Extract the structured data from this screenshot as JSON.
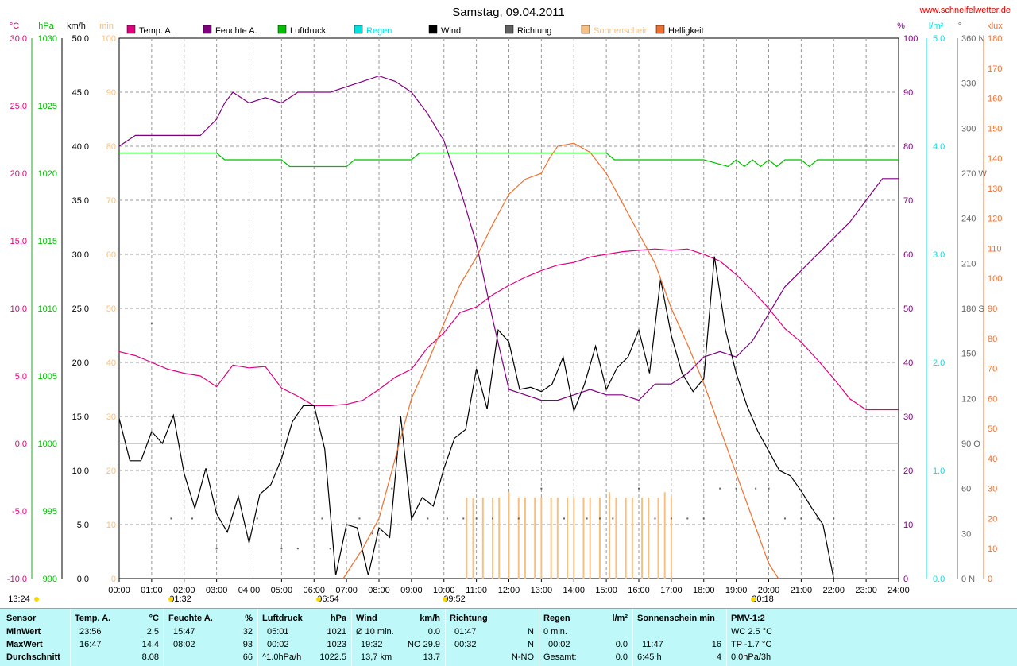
{
  "page_title": "Samstag, 09.04.2011",
  "website": "www.schneifelwetter.de",
  "colors": {
    "temp": "#e0007f",
    "humidity": "#800080",
    "pressure": "#00c000",
    "rain": "#00e0e0",
    "wind": "#000000",
    "direction": "#606060",
    "sunshine": "#f8c080",
    "brightness": "#f07030"
  },
  "chart_data": {
    "type": "line",
    "x": [
      "00:00",
      "01:00",
      "02:00",
      "03:00",
      "04:00",
      "05:00",
      "06:00",
      "07:00",
      "08:00",
      "09:00",
      "10:00",
      "11:00",
      "12:00",
      "13:00",
      "14:00",
      "15:00",
      "16:00",
      "17:00",
      "18:00",
      "19:00",
      "20:00",
      "21:00",
      "22:00",
      "23:00",
      "24:00"
    ],
    "xlim": [
      0,
      24
    ],
    "grid": true,
    "legend_position": "top",
    "legend": [
      "Temp. A.",
      "Feuchte A.",
      "Luftdruck",
      "Regen",
      "Wind",
      "Richtung",
      "Sonnenschein",
      "Helligkeit"
    ],
    "axes": {
      "temp": {
        "unit": "°C",
        "ticks": [
          "30.0",
          "25.0",
          "20.0",
          "15.0",
          "10.0",
          "5.0",
          "0.0",
          "-5.0",
          "-10.0"
        ],
        "ylim": [
          -10,
          30
        ]
      },
      "pressure": {
        "unit": "hPa",
        "ticks": [
          "1030",
          "1025",
          "1020",
          "1015",
          "1010",
          "1005",
          "1000",
          "995",
          "990"
        ],
        "ylim": [
          990,
          1030
        ]
      },
      "wind": {
        "unit": "km/h",
        "ticks": [
          "50.0",
          "45.0",
          "40.0",
          "35.0",
          "30.0",
          "25.0",
          "20.0",
          "15.0",
          "10.0",
          "5.0",
          "0.0"
        ],
        "ylim": [
          0,
          50
        ]
      },
      "sunshine": {
        "unit": "min",
        "ticks": [
          "100",
          "90",
          "80",
          "70",
          "60",
          "50",
          "40",
          "30",
          "20",
          "10",
          "0"
        ],
        "ylim": [
          0,
          100
        ]
      },
      "humidity": {
        "unit": "%",
        "ticks": [
          "100",
          "90",
          "80",
          "70",
          "60",
          "50",
          "40",
          "30",
          "20",
          "10",
          "0"
        ],
        "ylim": [
          0,
          100
        ]
      },
      "rain": {
        "unit": "l/m²",
        "ticks": [
          "5.0",
          "4.0",
          "3.0",
          "2.0",
          "1.0",
          "0.0"
        ],
        "ylim": [
          0,
          5
        ]
      },
      "direction": {
        "unit": "°",
        "ticks": [
          "360 N",
          "330",
          "300",
          "270 W",
          "240",
          "210",
          "180 S",
          "150",
          "120",
          "90 O",
          "60",
          "30",
          "0 N"
        ],
        "ylim": [
          0,
          360
        ]
      },
      "brightness": {
        "unit": "klux",
        "ticks": [
          "180",
          "170",
          "160",
          "150",
          "140",
          "130",
          "120",
          "110",
          "100",
          "90",
          "80",
          "70",
          "60",
          "50",
          "40",
          "30",
          "20",
          "10",
          "0"
        ],
        "ylim": [
          0,
          180
        ]
      }
    },
    "series": [
      {
        "name": "Temp. A.",
        "axis": "temp",
        "x": [
          0,
          0.5,
          1,
          1.5,
          2,
          2.5,
          3,
          3.5,
          4,
          4.5,
          5,
          5.5,
          6,
          6.5,
          7,
          7.5,
          8,
          8.5,
          9,
          9.5,
          10,
          10.5,
          11,
          11.5,
          12,
          12.5,
          13,
          13.5,
          14,
          14.5,
          15,
          15.5,
          16,
          16.5,
          17,
          17.5,
          18,
          18.5,
          19,
          19.5,
          20,
          20.5,
          21,
          21.5,
          22,
          22.5,
          23,
          23.5,
          24
        ],
        "values": [
          6.8,
          6.5,
          6.0,
          5.5,
          5.2,
          5.0,
          4.2,
          5.8,
          5.6,
          5.7,
          4.1,
          3.5,
          2.8,
          2.8,
          2.9,
          3.2,
          4.0,
          4.9,
          5.5,
          7.1,
          8.2,
          9.7,
          10.1,
          11.0,
          11.7,
          12.3,
          12.8,
          13.2,
          13.4,
          13.8,
          14.0,
          14.2,
          14.3,
          14.4,
          14.3,
          14.4,
          14.0,
          13.5,
          12.5,
          11.3,
          10.0,
          8.5,
          7.5,
          6.2,
          4.8,
          3.3,
          2.5,
          2.5,
          2.5
        ]
      },
      {
        "name": "Feuchte A.",
        "axis": "humidity",
        "x": [
          0,
          0.5,
          1,
          1.5,
          2,
          2.5,
          3,
          3.25,
          3.5,
          4,
          4.5,
          5,
          5.5,
          6,
          6.5,
          7,
          7.5,
          8,
          8.5,
          9,
          9.5,
          10,
          10.5,
          11,
          11.5,
          12,
          12.5,
          13,
          13.5,
          14,
          14.5,
          15,
          15.5,
          16,
          16.5,
          17,
          17.5,
          18,
          18.5,
          19,
          19.5,
          20,
          20.5,
          21,
          21.5,
          22,
          22.5,
          23,
          23.5,
          24
        ],
        "values": [
          80,
          82,
          82,
          82,
          82,
          82,
          85,
          88,
          90,
          88,
          89,
          88,
          90,
          90,
          90,
          91,
          92,
          93,
          92,
          90,
          86,
          81,
          72,
          62,
          48,
          35,
          34,
          33,
          33,
          34,
          35,
          34,
          34,
          33,
          36,
          36,
          38,
          41,
          42,
          41,
          44,
          49,
          54,
          57,
          60,
          63,
          66,
          70,
          74,
          74
        ]
      },
      {
        "name": "Luftdruck",
        "axis": "pressure",
        "x": [
          0,
          2,
          2.25,
          3,
          3.25,
          4,
          4.5,
          5,
          5.25,
          6,
          6.5,
          7,
          7.25,
          8,
          8.5,
          9,
          9.25,
          10,
          12,
          14,
          15,
          15.25,
          16,
          17,
          18,
          18.75,
          19,
          19.25,
          19.5,
          19.75,
          20,
          20.25,
          20.5,
          20.75,
          21,
          21.25,
          21.5,
          21.75,
          22,
          24
        ],
        "values": [
          1021.5,
          1021.5,
          1021.5,
          1021.5,
          1021,
          1021,
          1021,
          1021,
          1020.5,
          1020.5,
          1020.5,
          1020.5,
          1021,
          1021,
          1021,
          1021,
          1021.5,
          1021.5,
          1021.5,
          1021.5,
          1021.5,
          1021,
          1021,
          1021,
          1021,
          1020.5,
          1021,
          1020.5,
          1021,
          1020.5,
          1021,
          1020.5,
          1021,
          1021,
          1021,
          1020.5,
          1021,
          1021,
          1021,
          1021
        ]
      },
      {
        "name": "Wind",
        "axis": "wind",
        "x": [
          0,
          0.33,
          0.67,
          1,
          1.33,
          1.67,
          2,
          2.33,
          2.67,
          3,
          3.33,
          3.67,
          4,
          4.33,
          4.67,
          5,
          5.33,
          5.67,
          6,
          6.33,
          6.67,
          7,
          7.33,
          7.67,
          8,
          8.33,
          8.67,
          9,
          9.33,
          9.67,
          10,
          10.33,
          10.67,
          11,
          11.33,
          11.67,
          12,
          12.33,
          12.67,
          13,
          13.33,
          13.67,
          14,
          14.33,
          14.67,
          15,
          15.33,
          15.67,
          16,
          16.33,
          16.67,
          17,
          17.33,
          17.67,
          18,
          18.33,
          18.67,
          19,
          19.33,
          19.67,
          20,
          20.33,
          20.67,
          21,
          21.33,
          21.67,
          22
        ],
        "values": [
          14.8,
          10.9,
          10.9,
          13.6,
          12.5,
          15.1,
          9.7,
          6.5,
          10.2,
          6.0,
          4.3,
          7.6,
          3.3,
          7.8,
          8.7,
          11.1,
          14.5,
          16.0,
          16.0,
          12.0,
          0.3,
          5.0,
          4.7,
          0.3,
          4.7,
          3.8,
          15.0,
          5.5,
          7.5,
          6.7,
          10.2,
          13.0,
          13.8,
          19.4,
          15.7,
          23.0,
          21.9,
          17.5,
          17.7,
          17.3,
          18.0,
          20.5,
          15.5,
          18.0,
          21.5,
          17.5,
          19.5,
          20.5,
          23.0,
          19.0,
          27.7,
          22.5,
          19.0,
          17.3,
          18.5,
          29.8,
          23.0,
          19.0,
          16.0,
          13.6,
          11.8,
          10.0,
          9.5,
          8.1,
          6.5,
          5.0,
          0.0
        ]
      },
      {
        "name": "Helligkeit",
        "axis": "brightness",
        "x": [
          6.9,
          7.5,
          8,
          8.5,
          9,
          9.5,
          10,
          10.5,
          11,
          11.5,
          12,
          12.5,
          13,
          13.25,
          13.5,
          14,
          14.5,
          15,
          15.5,
          16,
          16.5,
          17,
          17.5,
          18,
          18.5,
          19,
          19.5,
          20,
          20.3
        ],
        "values": [
          0,
          10,
          20,
          40,
          60,
          72,
          85,
          98,
          107,
          118,
          128,
          133,
          135,
          140,
          144,
          145,
          142,
          135,
          125,
          115,
          105,
          90,
          78,
          65,
          50,
          35,
          20,
          5,
          0
        ]
      }
    ],
    "direction_points": {
      "axis": "direction",
      "x": [
        1,
        1.6,
        2.25,
        3,
        4.25,
        5,
        5.5,
        6.25,
        6.5,
        7.4,
        7.8,
        8.4,
        9.5,
        10.1,
        10.6,
        11,
        11.5,
        12.3,
        13,
        13.7,
        14.4,
        14.8,
        15.2,
        16,
        16.5,
        17,
        17.5,
        18,
        18.5,
        19,
        19.6,
        20,
        20.5,
        21,
        21.5,
        22
      ],
      "values": [
        170,
        40,
        40,
        20,
        40,
        20,
        20,
        40,
        20,
        40,
        30,
        60,
        40,
        40,
        40,
        40,
        40,
        40,
        60,
        40,
        40,
        40,
        40,
        60,
        40,
        40,
        40,
        40,
        60,
        60,
        60,
        60,
        40,
        40,
        40,
        40
      ]
    },
    "sunshine_bars": {
      "axis": "sunshine",
      "x": [
        10.7,
        10.9,
        11.2,
        11.5,
        11.7,
        12,
        12.3,
        12.5,
        12.8,
        13,
        13.3,
        13.5,
        13.8,
        14,
        14.3,
        14.5,
        14.8,
        15.1,
        15.3,
        15.6,
        15.8,
        16.1,
        16.3,
        16.6,
        16.8,
        17
      ],
      "values": [
        15,
        15,
        15,
        15,
        15,
        16,
        15,
        15,
        15,
        15,
        15,
        15,
        15,
        15,
        15,
        15,
        15,
        16,
        15,
        15,
        15,
        15,
        15,
        15,
        16,
        15
      ]
    },
    "annotations": [
      "13:24",
      "01:32",
      "06:54",
      "09:52",
      "20:18"
    ]
  },
  "stats": {
    "sensor": {
      "header": "Sensor",
      "rows": [
        "MinWert",
        "MaxWert",
        "Durchschnitt"
      ]
    },
    "temp": {
      "header": "Temp. A.",
      "unit": "°C",
      "rows": [
        [
          "23:56",
          "2.5"
        ],
        [
          "16:47",
          "14.4"
        ],
        [
          "",
          "8.08"
        ]
      ]
    },
    "humidity": {
      "header": "Feuchte A.",
      "unit": "%",
      "rows": [
        [
          "15:47",
          "32"
        ],
        [
          "08:02",
          "93"
        ],
        [
          "",
          "66"
        ]
      ]
    },
    "pressure": {
      "header": "Luftdruck",
      "unit": "hPa",
      "rows": [
        [
          "05:01",
          "1021"
        ],
        [
          "00:02",
          "1023"
        ],
        [
          "^1.0hPa/h",
          "1022.5"
        ]
      ]
    },
    "wind": {
      "header": "Wind",
      "unit": "km/h",
      "rows": [
        [
          "Ø 10 min.",
          "0.0"
        ],
        [
          "19:32",
          "NO 29.9"
        ],
        [
          "13,7 km",
          "13.7"
        ]
      ]
    },
    "direction": {
      "header": "Richtung",
      "rows": [
        [
          "01:47",
          "N"
        ],
        [
          "00:32",
          "N"
        ],
        [
          "",
          "N-NO"
        ]
      ]
    },
    "rain": {
      "header": "Regen",
      "unit": "l/m²",
      "rows": [
        [
          "0 min.",
          ""
        ],
        [
          "00:02",
          "0.0"
        ],
        [
          "Gesamt:",
          "0.0"
        ]
      ]
    },
    "sunshine": {
      "header": "Sonnenschein min",
      "rows": [
        [
          "",
          ""
        ],
        [
          "11:47",
          "16"
        ],
        [
          "6:45 h",
          "4"
        ]
      ]
    },
    "pmv": {
      "header": "PMV-1:2",
      "rows": [
        "WC 2.5 °C",
        "TP -1.7 °C",
        "0.0hPa/3h"
      ]
    }
  }
}
